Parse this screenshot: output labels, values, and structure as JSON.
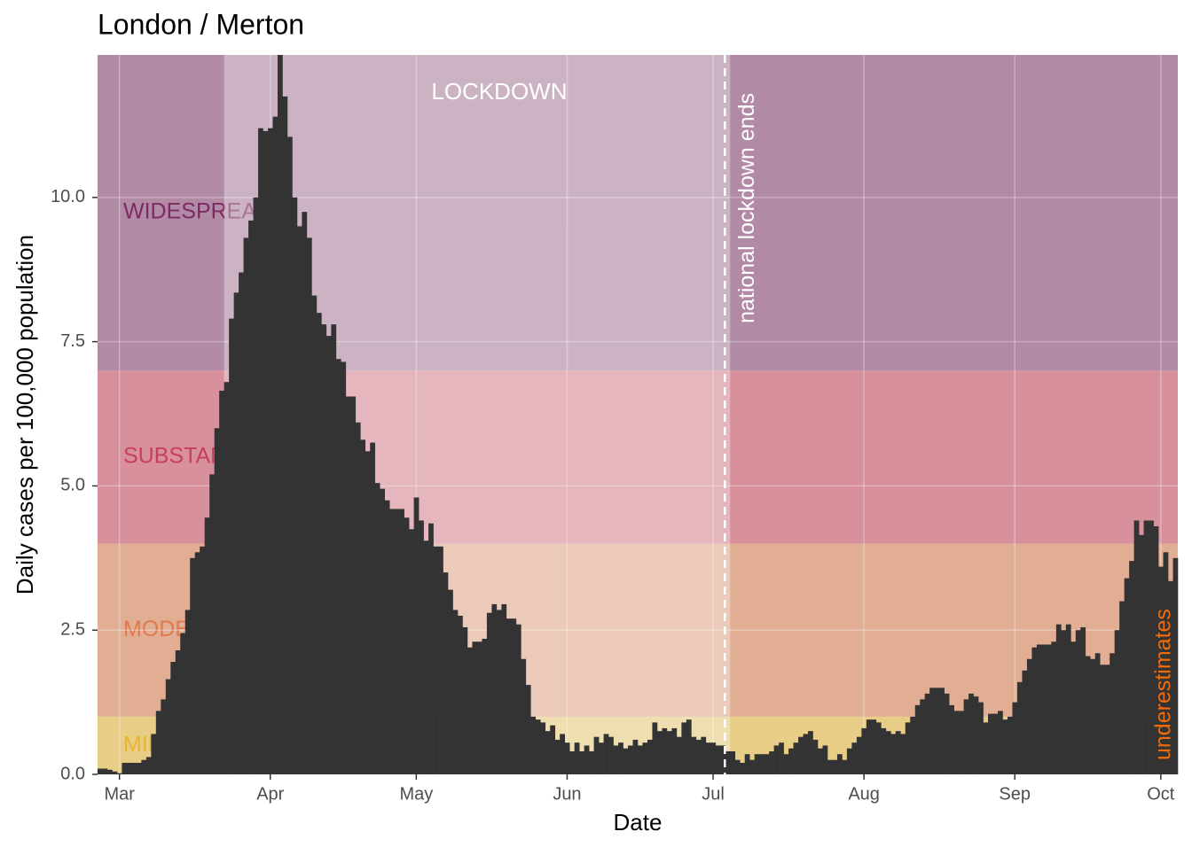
{
  "chart_data": {
    "type": "bar",
    "title": "London / Merton",
    "x_label": "Date",
    "y_label": "Daily cases per 100,000 population",
    "categories": [
      null,
      null,
      null,
      null,
      "Mar",
      null,
      null,
      null,
      null,
      null,
      null,
      null,
      null,
      null,
      null,
      null,
      null,
      null,
      null,
      null,
      null,
      null,
      null,
      null,
      null,
      null,
      null,
      null,
      null,
      null,
      null,
      null,
      null,
      null,
      null,
      "Apr",
      null,
      null,
      null,
      null,
      null,
      null,
      null,
      null,
      null,
      null,
      null,
      null,
      null,
      null,
      null,
      null,
      null,
      null,
      null,
      null,
      null,
      null,
      null,
      null,
      null,
      null,
      null,
      null,
      null,
      "May",
      null,
      null,
      null,
      null,
      null,
      null,
      null,
      null,
      null,
      null,
      null,
      null,
      null,
      null,
      null,
      null,
      null,
      null,
      null,
      null,
      null,
      null,
      null,
      null,
      null,
      null,
      null,
      null,
      null,
      null,
      "Jun",
      null,
      null,
      null,
      null,
      null,
      null,
      null,
      null,
      null,
      null,
      null,
      null,
      null,
      null,
      null,
      null,
      null,
      null,
      null,
      null,
      null,
      null,
      null,
      null,
      null,
      null,
      null,
      null,
      null,
      "Jul",
      null,
      null,
      null,
      null,
      null,
      null,
      null,
      null,
      null,
      null,
      null,
      null,
      null,
      null,
      null,
      null,
      null,
      null,
      null,
      null,
      null,
      null,
      null,
      null,
      null,
      null,
      null,
      null,
      null,
      null,
      "Aug",
      null,
      null,
      null,
      null,
      null,
      null,
      null,
      null,
      null,
      null,
      null,
      null,
      null,
      null,
      null,
      null,
      null,
      null,
      null,
      null,
      null,
      null,
      null,
      null,
      null,
      null,
      null,
      null,
      null,
      null,
      "Sep",
      null,
      null,
      null,
      null,
      null,
      null,
      null,
      null,
      null,
      null,
      null,
      null,
      null,
      null,
      null,
      null,
      null,
      null,
      null,
      null,
      null,
      null,
      null,
      null,
      null,
      null,
      null,
      null,
      null,
      "Oct",
      null,
      null,
      null
    ],
    "values": [
      0.1,
      0.1,
      0.08,
      0.05,
      0.02,
      0.2,
      0.2,
      0.2,
      0.2,
      0.25,
      0.3,
      0.7,
      1.1,
      1.3,
      1.65,
      1.95,
      2.15,
      2.45,
      2.85,
      3.75,
      3.85,
      3.95,
      4.45,
      5.2,
      6.0,
      6.65,
      6.8,
      7.9,
      8.35,
      8.7,
      9.3,
      9.6,
      10.0,
      11.2,
      11.15,
      11.2,
      11.4,
      12.47,
      11.75,
      11.05,
      10.0,
      9.5,
      9.75,
      9.3,
      8.3,
      8.0,
      7.8,
      7.6,
      7.8,
      7.2,
      7.15,
      6.55,
      6.55,
      6.1,
      5.8,
      5.6,
      5.75,
      5.05,
      4.95,
      4.75,
      4.6,
      4.6,
      4.6,
      4.45,
      4.25,
      4.8,
      4.4,
      4.05,
      4.35,
      3.95,
      3.95,
      3.5,
      3.2,
      2.85,
      2.75,
      2.55,
      2.2,
      2.3,
      2.3,
      2.35,
      2.8,
      2.95,
      2.85,
      2.95,
      2.7,
      2.7,
      2.6,
      2.0,
      1.55,
      1.0,
      0.95,
      0.9,
      0.75,
      0.85,
      0.6,
      0.7,
      0.55,
      0.4,
      0.55,
      0.4,
      0.5,
      0.4,
      0.65,
      0.55,
      0.7,
      0.65,
      0.5,
      0.55,
      0.45,
      0.5,
      0.6,
      0.5,
      0.55,
      0.6,
      0.9,
      0.75,
      0.8,
      0.75,
      0.8,
      0.65,
      0.9,
      0.95,
      0.65,
      0.6,
      0.65,
      0.55,
      0.55,
      0.5,
      0.5,
      0.4,
      0.4,
      0.25,
      0.2,
      0.35,
      0.25,
      0.35,
      0.35,
      0.35,
      0.4,
      0.5,
      0.55,
      0.35,
      0.45,
      0.55,
      0.65,
      0.7,
      0.75,
      0.6,
      0.45,
      0.5,
      0.25,
      0.25,
      0.35,
      0.25,
      0.45,
      0.55,
      0.65,
      0.8,
      0.95,
      0.95,
      0.9,
      0.8,
      0.75,
      0.7,
      0.75,
      0.7,
      0.9,
      1.0,
      1.2,
      1.3,
      1.4,
      1.5,
      1.5,
      1.5,
      1.4,
      1.2,
      1.1,
      1.1,
      1.3,
      1.4,
      1.35,
      1.25,
      0.9,
      1.05,
      1.05,
      1.1,
      0.95,
      1.0,
      1.25,
      1.6,
      1.8,
      2.0,
      2.2,
      2.25,
      2.25,
      2.25,
      2.3,
      2.6,
      2.5,
      2.6,
      2.3,
      2.5,
      2.55,
      2.05,
      2.0,
      2.1,
      1.9,
      1.9,
      2.1,
      2.5,
      3.0,
      3.4,
      3.7,
      4.4,
      4.15,
      4.4,
      4.4,
      4.3,
      3.6,
      3.85,
      3.35,
      3.75
    ],
    "color": "#333333",
    "ylim": [
      0,
      12.47
    ],
    "yticks": [
      {
        "value": 0,
        "label": "0.0"
      },
      2.5,
      {
        "value": 5,
        "label": "5.0"
      },
      7.5,
      {
        "value": 10,
        "label": "10.0"
      }
    ],
    "grid": true,
    "bands": [
      {
        "label": "MILD",
        "from": 0,
        "to": 1,
        "color": "#e7cd86",
        "text_color": "#e8b62e"
      },
      {
        "label": "MODERATE",
        "from": 1,
        "to": 4,
        "color": "#e1ae94",
        "text_color": "#e2794a"
      },
      {
        "label": "SUBSTANTIAL",
        "from": 4,
        "to": 7,
        "color": "#d8909c",
        "text_color": "#c73f5c"
      },
      {
        "label": "WIDESPREAD",
        "from": 7,
        "to": 12.47,
        "color": "#b18aa5",
        "text_color": "#7d2a63"
      }
    ],
    "lockdown": {
      "label": "LOCKDOWN",
      "from": 26,
      "to": 130,
      "end_label": "national lockdown ends"
    },
    "note": {
      "label": "underestimates",
      "color": "#f06c0c"
    }
  }
}
